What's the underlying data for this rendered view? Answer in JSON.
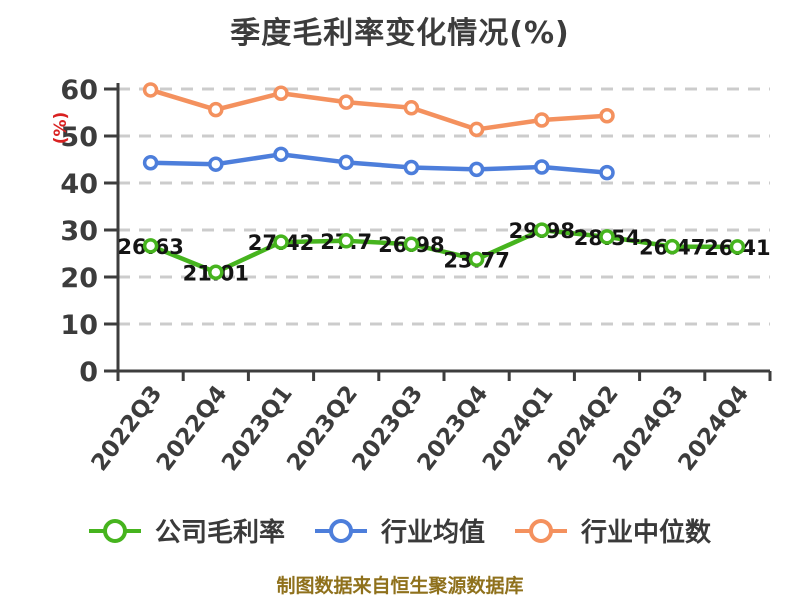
{
  "title": "季度毛利率变化情况(%)",
  "source_note": "制图数据来自恒生聚源数据库",
  "chart_data": {
    "type": "line",
    "title": "季度毛利率变化情况(%)",
    "xlabel": "",
    "ylabel": "(%)",
    "ylim": [
      0,
      60
    ],
    "y_ticks": [
      0,
      10,
      20,
      30,
      40,
      50,
      60
    ],
    "grid": "horizontal-dashed",
    "legend_position": "bottom",
    "categories": [
      "2022Q3",
      "2022Q4",
      "2023Q1",
      "2023Q2",
      "2023Q3",
      "2023Q4",
      "2024Q1",
      "2024Q2",
      "2024Q3",
      "2024Q4"
    ],
    "series": [
      {
        "name": "公司毛利率",
        "color": "#46b41e",
        "values": [
          26.63,
          21.01,
          27.42,
          27.7,
          26.98,
          23.77,
          29.98,
          28.54,
          26.47,
          26.41
        ],
        "data_labels": true
      },
      {
        "name": "行业均值",
        "color": "#4d7edb",
        "values": [
          44.3,
          44.0,
          46.1,
          44.4,
          43.3,
          42.9,
          43.4,
          42.2
        ],
        "data_labels": false
      },
      {
        "name": "行业中位数",
        "color": "#f4915e",
        "values": [
          59.8,
          55.6,
          59.1,
          57.2,
          56.0,
          51.4,
          53.4,
          54.3
        ],
        "data_labels": false
      }
    ]
  },
  "colors": {
    "title_text": "#3c3c3c",
    "axis_line": "#3d3d3d",
    "grid_line": "#cccccc",
    "tick_label": "#3c3c3c",
    "data_label": "#141414",
    "legend_text": "#3a3a3a",
    "y_axis_name": "#d92121",
    "source_text": "#8f711c",
    "marker_fill": "#ffffff"
  }
}
